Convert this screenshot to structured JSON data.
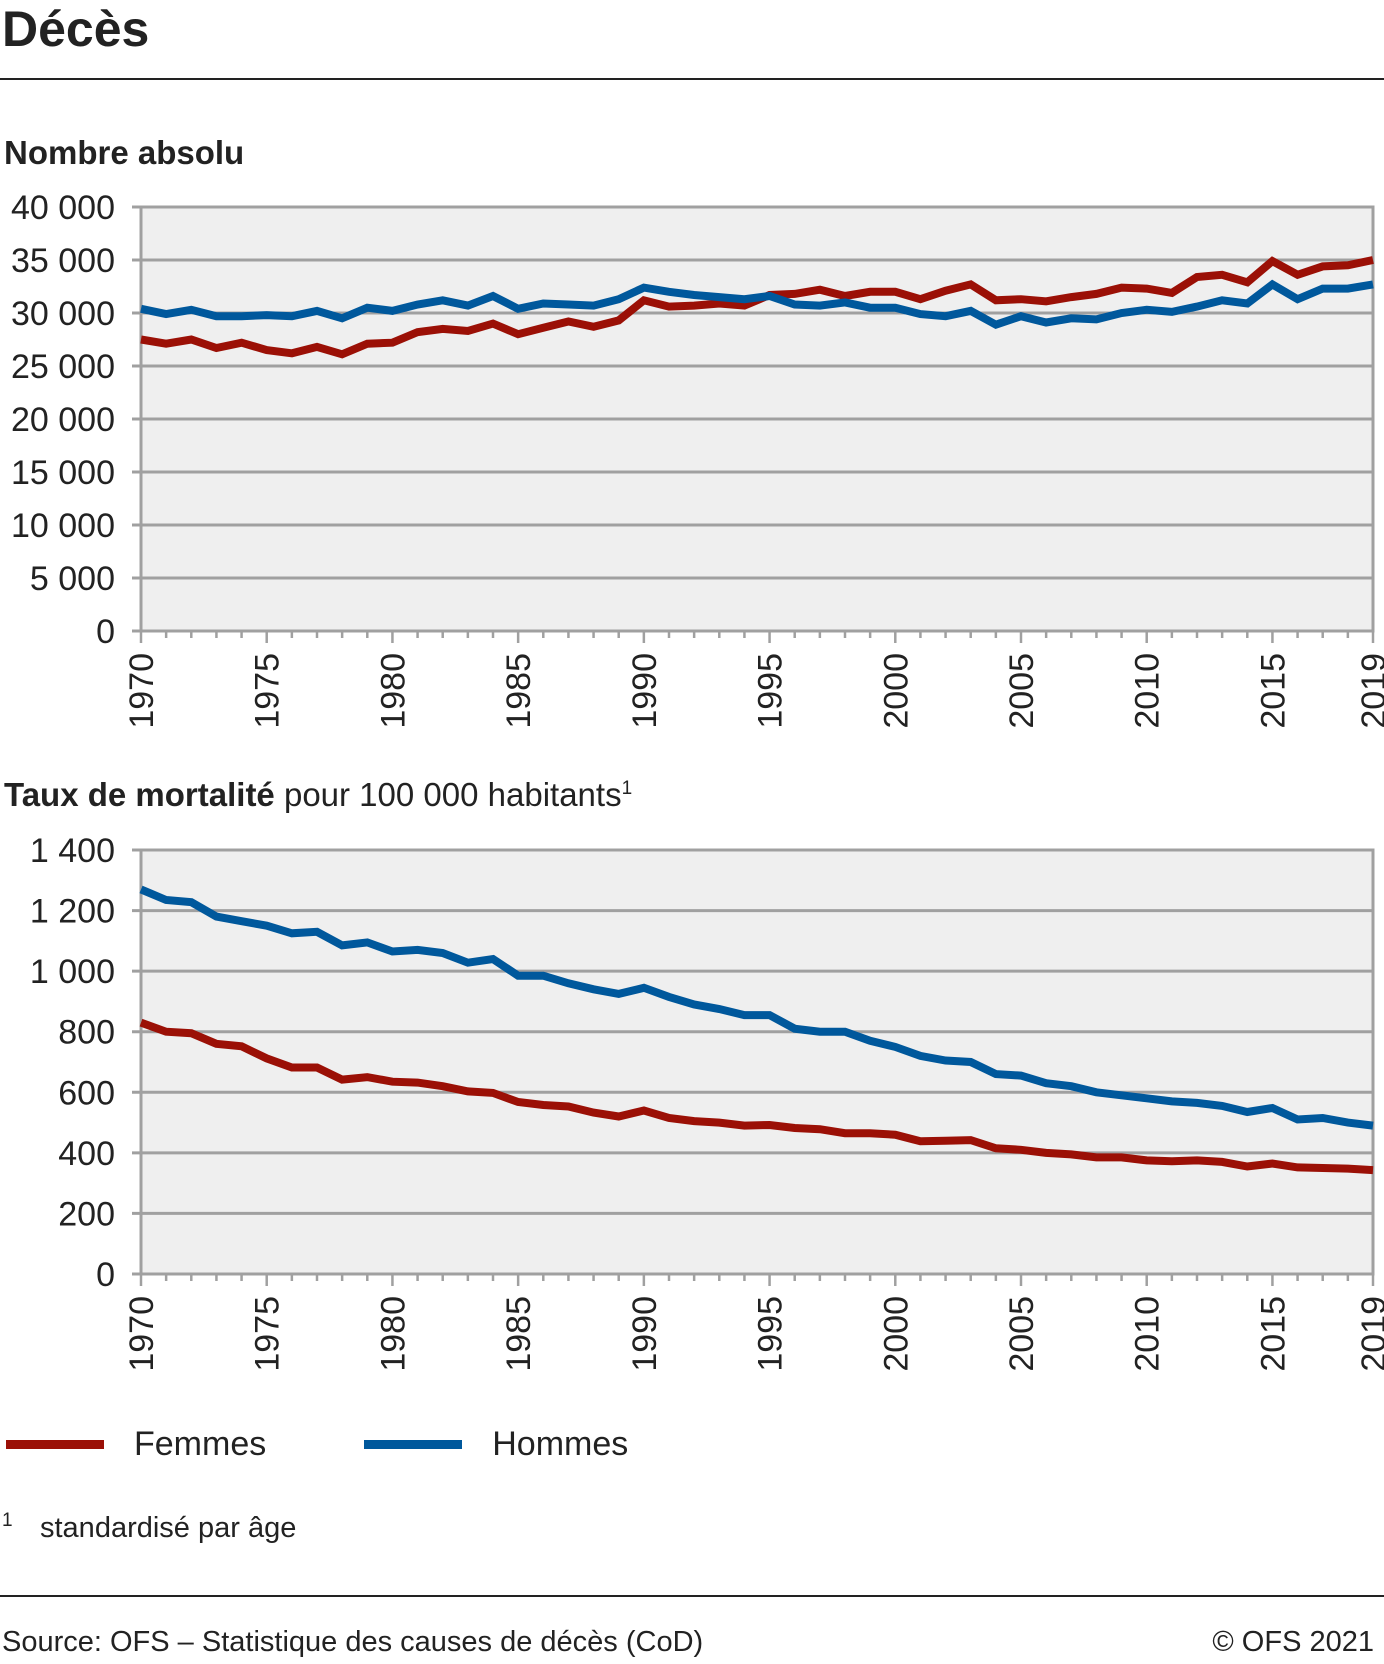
{
  "title": "Décès",
  "footnote": {
    "mark": "1",
    "text": "standardisé par âge"
  },
  "source": "Source: OFS – Statistique des causes de décès (CoD)",
  "copyright": "© OFS 2021",
  "legend": [
    {
      "label": "Femmes",
      "color": "#9b1006"
    },
    {
      "label": "Hommes",
      "color": "#00589c"
    }
  ],
  "chart_data": [
    {
      "type": "line",
      "title": "Nombre absolu",
      "x": [
        1970,
        1971,
        1972,
        1973,
        1974,
        1975,
        1976,
        1977,
        1978,
        1979,
        1980,
        1981,
        1982,
        1983,
        1984,
        1985,
        1986,
        1987,
        1988,
        1989,
        1990,
        1991,
        1992,
        1993,
        1994,
        1995,
        1996,
        1997,
        1998,
        1999,
        2000,
        2001,
        2002,
        2003,
        2004,
        2005,
        2006,
        2007,
        2008,
        2009,
        2010,
        2011,
        2012,
        2013,
        2014,
        2015,
        2016,
        2017,
        2018,
        2019
      ],
      "xticks": [
        "1970",
        "1975",
        "1980",
        "1985",
        "1990",
        "1995",
        "2000",
        "2005",
        "2010",
        "2015",
        "2019"
      ],
      "ylim": [
        0,
        40000
      ],
      "yticks": [
        "0",
        "5 000",
        "10 000",
        "15 000",
        "20 000",
        "25 000",
        "30 000",
        "35 000",
        "40 000"
      ],
      "grid": true,
      "legend_position": "bottom",
      "series": [
        {
          "name": "Femmes",
          "color": "#9b1006",
          "values": [
            27500,
            27100,
            27500,
            26700,
            27200,
            26500,
            26200,
            26800,
            26100,
            27100,
            27200,
            28200,
            28500,
            28300,
            29000,
            28000,
            28600,
            29200,
            28700,
            29300,
            31200,
            30600,
            30700,
            30900,
            30700,
            31700,
            31800,
            32200,
            31600,
            32000,
            32000,
            31300,
            32100,
            32700,
            31200,
            31300,
            31100,
            31500,
            31800,
            32400,
            32300,
            31900,
            33400,
            33600,
            32900,
            34900,
            33600,
            34400,
            34500,
            35000
          ]
        },
        {
          "name": "Hommes",
          "color": "#00589c",
          "values": [
            30400,
            29900,
            30300,
            29700,
            29700,
            29800,
            29700,
            30200,
            29500,
            30500,
            30200,
            30800,
            31200,
            30700,
            31600,
            30400,
            30900,
            30800,
            30700,
            31300,
            32400,
            32000,
            31700,
            31500,
            31300,
            31600,
            30800,
            30700,
            31000,
            30500,
            30500,
            29900,
            29700,
            30200,
            28900,
            29700,
            29100,
            29500,
            29400,
            30000,
            30300,
            30100,
            30600,
            31200,
            30900,
            32700,
            31300,
            32300,
            32300,
            32700
          ]
        }
      ]
    },
    {
      "type": "line",
      "title_bold": "Taux de mortalité",
      "title_rest": " pour 100 000 habitants",
      "title_mark": "1",
      "x": [
        1970,
        1971,
        1972,
        1973,
        1974,
        1975,
        1976,
        1977,
        1978,
        1979,
        1980,
        1981,
        1982,
        1983,
        1984,
        1985,
        1986,
        1987,
        1988,
        1989,
        1990,
        1991,
        1992,
        1993,
        1994,
        1995,
        1996,
        1997,
        1998,
        1999,
        2000,
        2001,
        2002,
        2003,
        2004,
        2005,
        2006,
        2007,
        2008,
        2009,
        2010,
        2011,
        2012,
        2013,
        2014,
        2015,
        2016,
        2017,
        2018,
        2019
      ],
      "xticks": [
        "1970",
        "1975",
        "1980",
        "1985",
        "1990",
        "1995",
        "2000",
        "2005",
        "2010",
        "2015",
        "2019"
      ],
      "ylim": [
        0,
        1400
      ],
      "yticks": [
        "0",
        "200",
        "400",
        "600",
        "800",
        "1 000",
        "1 200",
        "1 400"
      ],
      "grid": true,
      "legend_position": "bottom",
      "series": [
        {
          "name": "Femmes",
          "color": "#9b1006",
          "values": [
            830,
            800,
            795,
            760,
            752,
            712,
            682,
            682,
            642,
            650,
            635,
            632,
            620,
            603,
            598,
            568,
            558,
            553,
            533,
            520,
            540,
            515,
            505,
            500,
            490,
            492,
            482,
            478,
            465,
            465,
            460,
            438,
            440,
            442,
            415,
            410,
            400,
            395,
            385,
            385,
            375,
            372,
            375,
            370,
            355,
            365,
            352,
            350,
            348,
            343
          ]
        },
        {
          "name": "Hommes",
          "color": "#00589c",
          "values": [
            1270,
            1235,
            1228,
            1180,
            1165,
            1150,
            1125,
            1130,
            1085,
            1095,
            1065,
            1070,
            1060,
            1028,
            1040,
            985,
            985,
            960,
            940,
            925,
            945,
            915,
            890,
            875,
            855,
            855,
            810,
            800,
            800,
            770,
            750,
            720,
            705,
            700,
            660,
            655,
            630,
            620,
            600,
            590,
            580,
            570,
            565,
            555,
            535,
            548,
            510,
            515,
            500,
            490
          ]
        }
      ]
    }
  ]
}
